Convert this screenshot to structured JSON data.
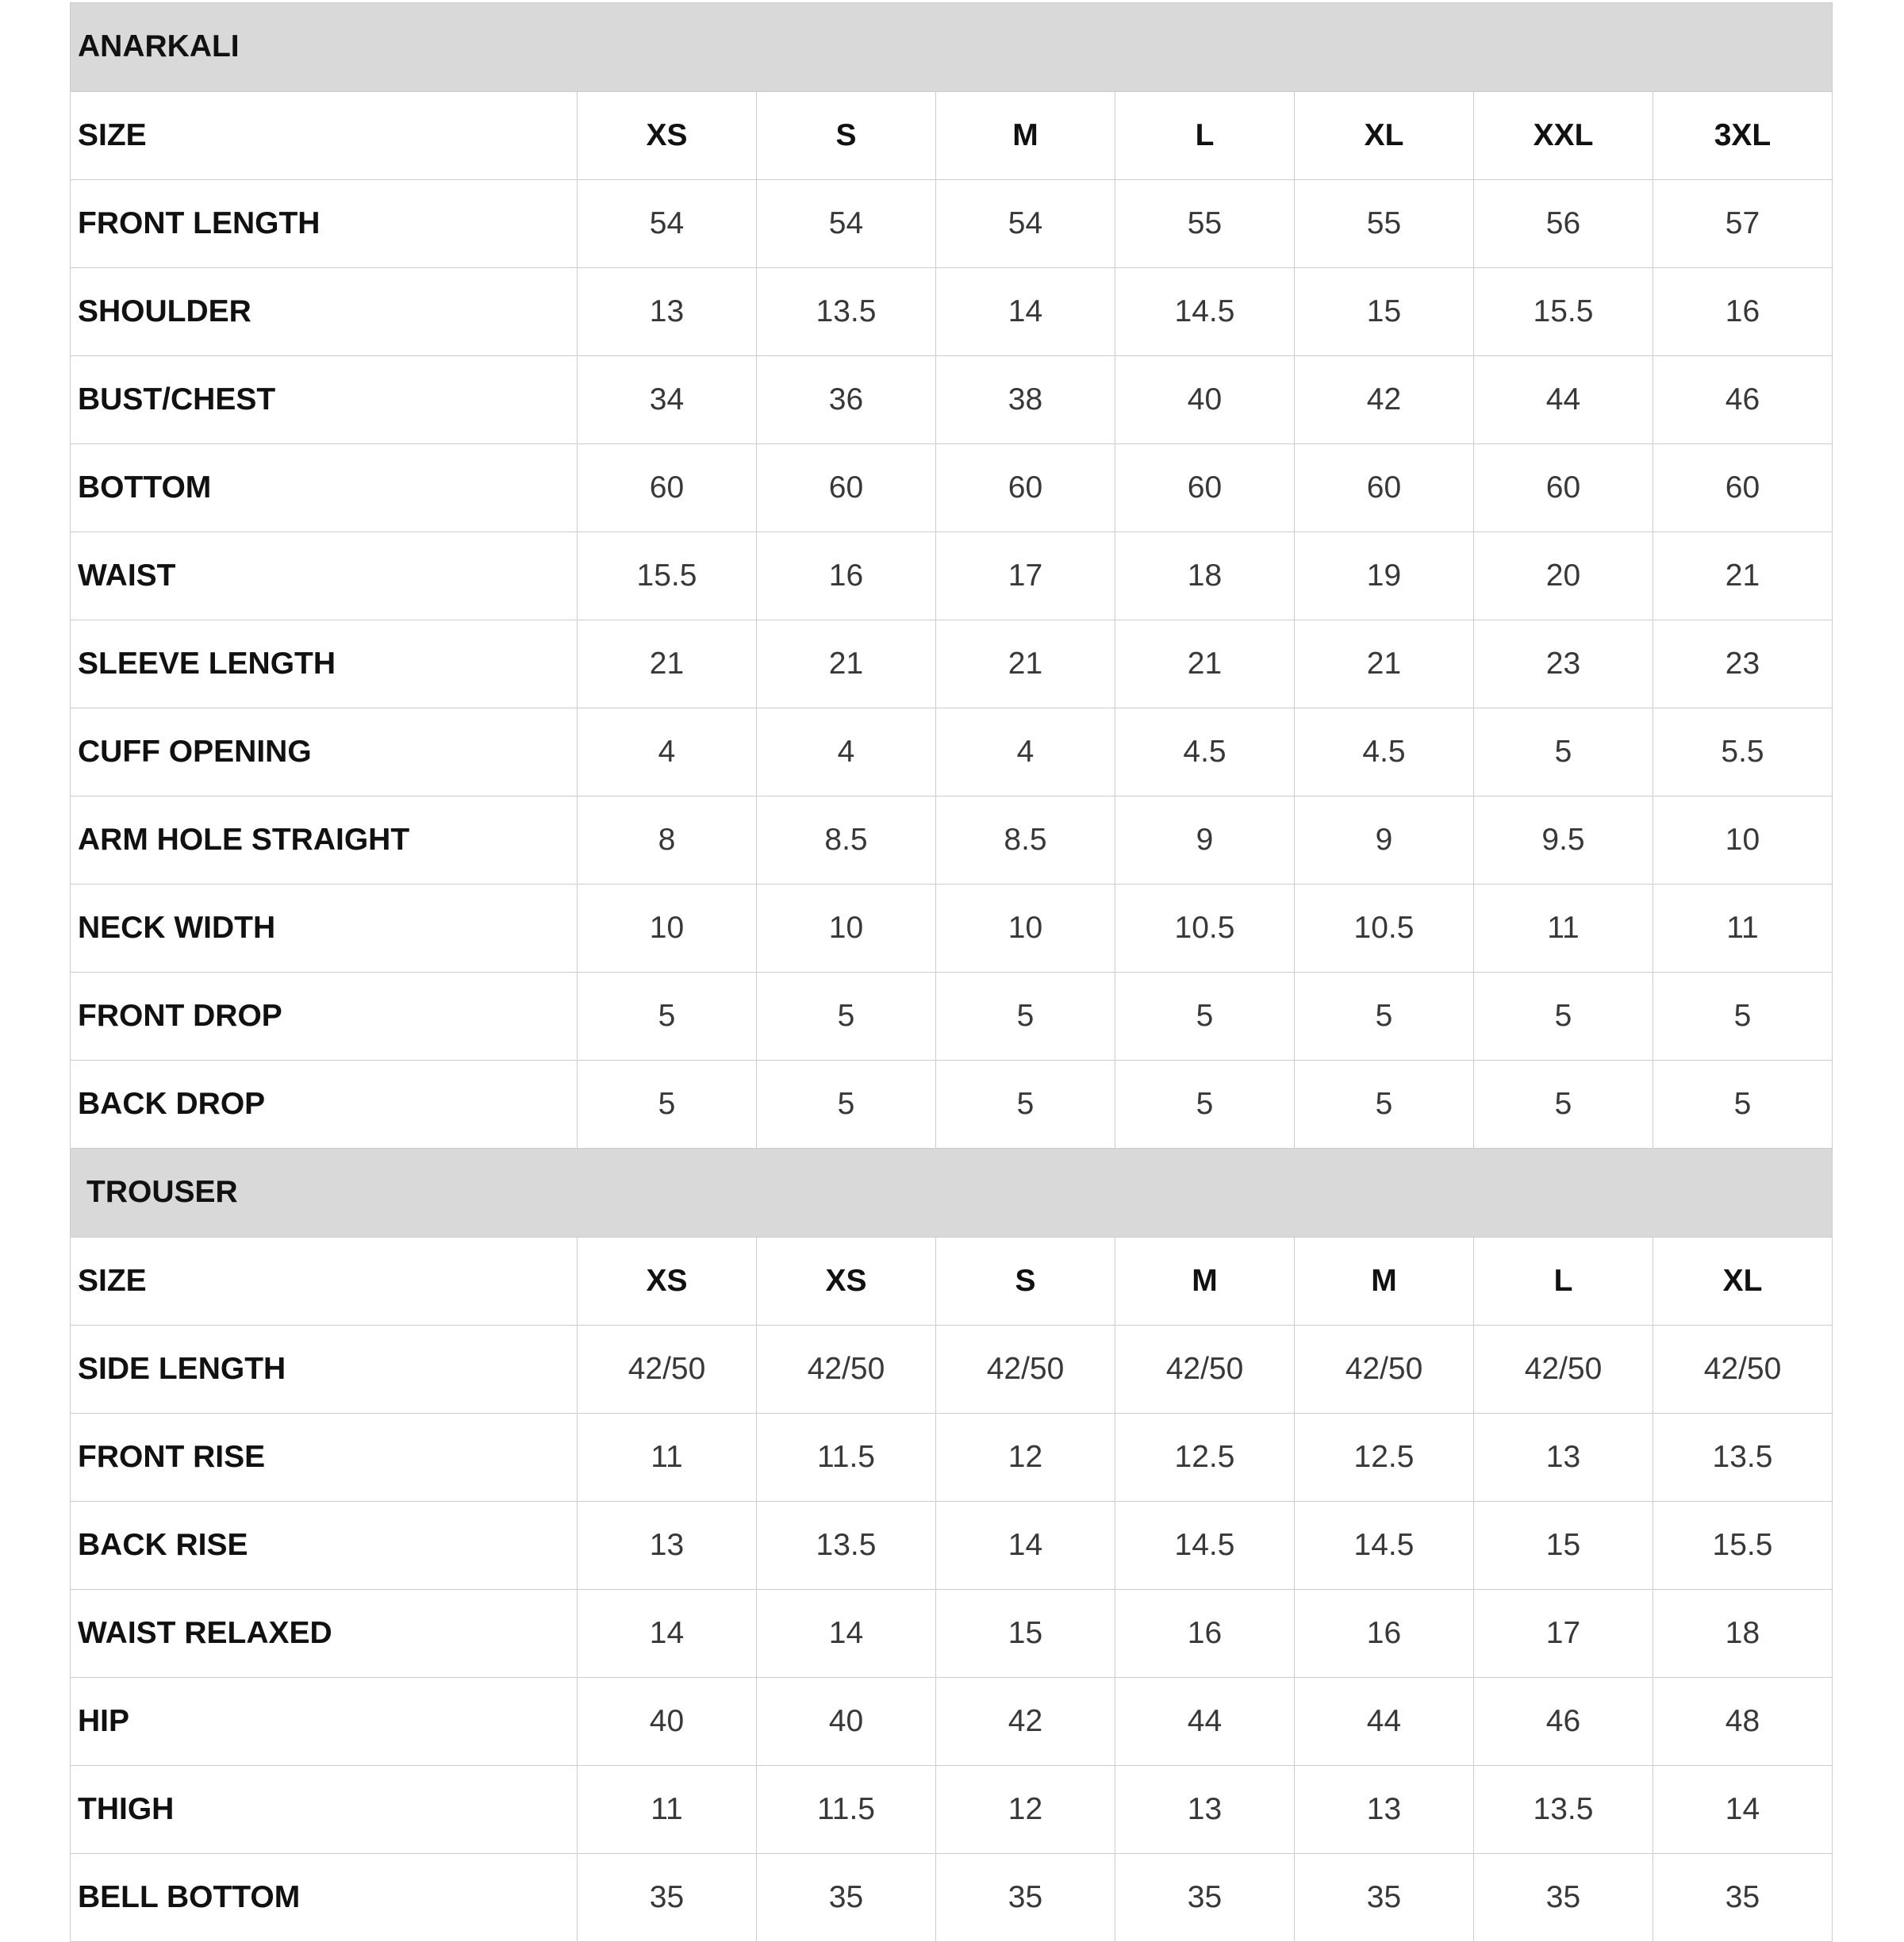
{
  "table": {
    "name": "size-chart",
    "size_column_count": 7
  },
  "sections": [
    {
      "title": "ANARKALI",
      "size_label": "SIZE",
      "sizes": [
        "XS",
        "S",
        "M",
        "L",
        "XL",
        "XXL",
        "3XL"
      ],
      "rows": [
        {
          "label": "FRONT LENGTH",
          "values": [
            "54",
            "54",
            "54",
            "55",
            "55",
            "56",
            "57"
          ]
        },
        {
          "label": "SHOULDER",
          "values": [
            "13",
            "13.5",
            "14",
            "14.5",
            "15",
            "15.5",
            "16"
          ]
        },
        {
          "label": "BUST/CHEST",
          "values": [
            "34",
            "36",
            "38",
            "40",
            "42",
            "44",
            "46"
          ]
        },
        {
          "label": "BOTTOM",
          "values": [
            "60",
            "60",
            "60",
            "60",
            "60",
            "60",
            "60"
          ]
        },
        {
          "label": "WAIST",
          "values": [
            "15.5",
            "16",
            "17",
            "18",
            "19",
            "20",
            "21"
          ]
        },
        {
          "label": "SLEEVE LENGTH",
          "values": [
            "21",
            "21",
            "21",
            "21",
            "21",
            "23",
            "23"
          ]
        },
        {
          "label": "CUFF OPENING",
          "values": [
            "4",
            "4",
            "4",
            "4.5",
            "4.5",
            "5",
            "5.5"
          ]
        },
        {
          "label": "ARM HOLE STRAIGHT",
          "values": [
            "8",
            "8.5",
            "8.5",
            "9",
            "9",
            "9.5",
            "10"
          ]
        },
        {
          "label": "NECK WIDTH",
          "values": [
            "10",
            "10",
            "10",
            "10.5",
            "10.5",
            "11",
            "11"
          ]
        },
        {
          "label": "FRONT DROP",
          "values": [
            "5",
            "5",
            "5",
            "5",
            "5",
            "5",
            "5"
          ]
        },
        {
          "label": "BACK DROP",
          "values": [
            "5",
            "5",
            "5",
            "5",
            "5",
            "5",
            "5"
          ]
        }
      ]
    },
    {
      "title": "TROUSER",
      "size_label": "SIZE",
      "sizes": [
        "XS",
        "XS",
        "S",
        "M",
        "M",
        "L",
        "XL"
      ],
      "rows": [
        {
          "label": "SIDE LENGTH",
          "values": [
            "42/50",
            "42/50",
            "42/50",
            "42/50",
            "42/50",
            "42/50",
            "42/50"
          ]
        },
        {
          "label": "FRONT RISE",
          "values": [
            "11",
            "11.5",
            "12",
            "12.5",
            "12.5",
            "13",
            "13.5"
          ]
        },
        {
          "label": "BACK RISE",
          "values": [
            "13",
            "13.5",
            "14",
            "14.5",
            "14.5",
            "15",
            "15.5"
          ]
        },
        {
          "label": "WAIST RELAXED",
          "values": [
            "14",
            "14",
            "15",
            "16",
            "16",
            "17",
            "18"
          ]
        },
        {
          "label": "HIP",
          "values": [
            "40",
            "40",
            "42",
            "44",
            "44",
            "46",
            "48"
          ]
        },
        {
          "label": "THIGH",
          "values": [
            "11",
            "11.5",
            "12",
            "13",
            "13",
            "13.5",
            "14"
          ]
        },
        {
          "label": "BELL BOTTOM",
          "values": [
            "35",
            "35",
            "35",
            "35",
            "35",
            "35",
            "35"
          ]
        }
      ]
    }
  ],
  "colors": {
    "section_header_bg": "#d9d9d9",
    "grid_line": "#cccccc",
    "label_text": "#111111",
    "value_text": "#383838",
    "background": "#ffffff"
  }
}
